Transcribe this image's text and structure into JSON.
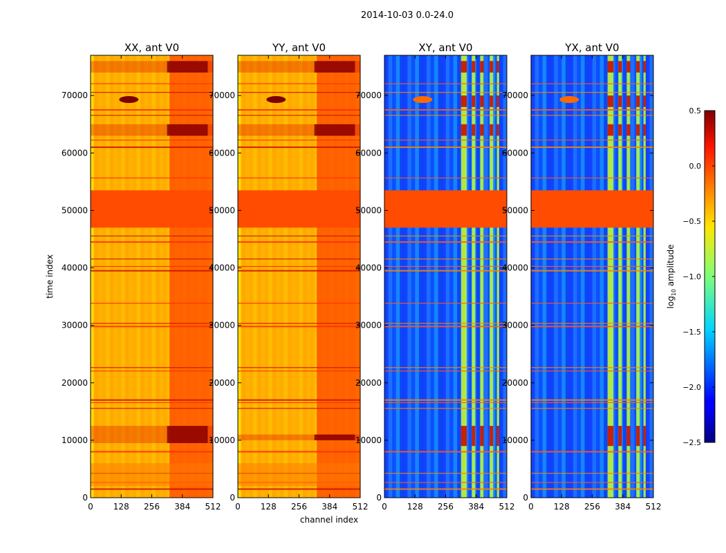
{
  "chart_data": {
    "type": "heatmap",
    "title": "2014-10-03 0.0-24.0",
    "xlabel": "channel index",
    "ylabel": "time index",
    "xlim": [
      0,
      512
    ],
    "ylim": [
      0,
      77000
    ],
    "xticks": [
      "0",
      "128",
      "256",
      "384",
      "512"
    ],
    "yticks": [
      "0",
      "10000",
      "20000",
      "30000",
      "40000",
      "50000",
      "60000",
      "70000"
    ],
    "panels": [
      {
        "title": "XX, ant V0",
        "type": "autocorr",
        "gap_rows": [
          [
            47000,
            53500
          ],
          [
            2000,
            6000
          ]
        ],
        "bright_channels": [
          [
            330,
            512
          ]
        ],
        "strong_rows": [
          [
            9500,
            12500
          ],
          [
            63000,
            65000
          ],
          [
            74000,
            76000
          ]
        ]
      },
      {
        "title": "YY, ant V0",
        "type": "autocorr",
        "gap_rows": [
          [
            47000,
            53500
          ],
          [
            2000,
            6000
          ]
        ],
        "bright_channels": [
          [
            330,
            512
          ]
        ],
        "strong_rows": [
          [
            10000,
            11000
          ],
          [
            63000,
            65000
          ],
          [
            74000,
            76000
          ]
        ]
      },
      {
        "title": "XY, ant V0",
        "type": "crosscorr",
        "gap_rows": [
          [
            47000,
            53500
          ]
        ],
        "bright_channels": [
          [
            320,
            345
          ],
          [
            365,
            380
          ],
          [
            400,
            415
          ],
          [
            440,
            455
          ],
          [
            470,
            480
          ]
        ],
        "strong_rows": [
          [
            9000,
            12500
          ],
          [
            63000,
            65000
          ],
          [
            68000,
            70000
          ],
          [
            74000,
            76000
          ]
        ]
      },
      {
        "title": "YX, ant V0",
        "type": "crosscorr",
        "gap_rows": [
          [
            47000,
            53500
          ]
        ],
        "bright_channels": [
          [
            320,
            345
          ],
          [
            365,
            380
          ],
          [
            400,
            415
          ],
          [
            440,
            455
          ],
          [
            470,
            480
          ]
        ],
        "strong_rows": [
          [
            9000,
            12500
          ],
          [
            63000,
            65000
          ],
          [
            68000,
            70000
          ],
          [
            74000,
            76000
          ]
        ]
      }
    ],
    "colorbar": {
      "label": "log",
      "label_sub": "10",
      "label_suffix": " amplitude",
      "range": [
        -2.5,
        0.5
      ],
      "ticks": [
        "0.5",
        "0.0",
        "−0.5",
        "−1.0",
        "−1.5",
        "−2.0",
        "−2.5"
      ],
      "colormap": "jet"
    }
  }
}
